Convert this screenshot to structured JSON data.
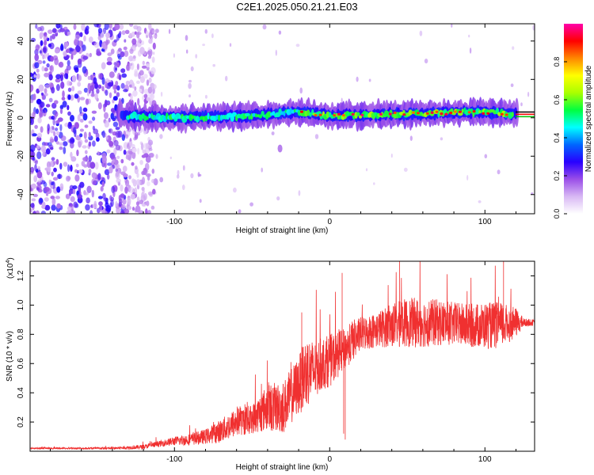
{
  "title": "C2E1.2025.050.21.21.E03",
  "chart_data": [
    {
      "type": "heatmap",
      "xlabel": "Height of straight line (km)",
      "ylabel": "Frequency (Hz)",
      "xlim": [
        -193,
        132
      ],
      "ylim": [
        -50,
        49
      ],
      "x_ticks": [
        -100,
        0,
        100
      ],
      "y_ticks": [
        -40,
        -20,
        0,
        20,
        40
      ],
      "colorbar": {
        "label": "Normalized spectral amplitude",
        "range": [
          0,
          1
        ],
        "ticks": [
          0.0,
          0.2,
          0.4,
          0.6,
          0.8
        ],
        "colormap": [
          "#ffffff",
          "#d8b8f4",
          "#9a4ee8",
          "#2800ff",
          "#0066ff",
          "#00ffff",
          "#00ff40",
          "#aaff00",
          "#ffff00",
          "#ff8800",
          "#ff0000",
          "#ff00aa"
        ]
      },
      "signal_ridge": {
        "description_values": "narrow band near 0 Hz",
        "freq_center_hz": [
          [
            -135,
            1
          ],
          [
            -100,
            0
          ],
          [
            -50,
            1
          ],
          [
            -20,
            3
          ],
          [
            0,
            1
          ],
          [
            50,
            2
          ],
          [
            100,
            3
          ],
          [
            120,
            2
          ]
        ],
        "noise_region_x": [
          -193,
          -120
        ],
        "isolated_feature": {
          "x": -32,
          "y": -16
        }
      },
      "legend_markers": [
        "#000000",
        "#ff0000",
        "#00c000"
      ]
    },
    {
      "type": "line",
      "xlabel": "Height of straight line (km)",
      "ylabel": "SNR (10 * v/v)",
      "y_multiplier": "(x10",
      "y_exponent": "4",
      "xlim": [
        -193,
        132
      ],
      "ylim": [
        0,
        1.3
      ],
      "x_ticks": [
        -100,
        0,
        100
      ],
      "y_ticks": [
        0.2,
        0.4,
        0.6,
        0.8,
        1.0,
        1.2
      ],
      "color": "#f03030",
      "series": [
        {
          "x": [
            -193,
            -170,
            -140,
            -120,
            -110,
            -100,
            -90,
            -80,
            -70,
            -60,
            -50,
            -40,
            -30,
            -20,
            -15,
            -10,
            -5,
            0,
            5,
            10,
            15,
            20,
            30,
            40,
            50,
            60,
            70,
            80,
            90,
            100,
            110,
            120,
            125,
            132
          ],
          "values": [
            0.02,
            0.02,
            0.02,
            0.03,
            0.05,
            0.07,
            0.08,
            0.1,
            0.14,
            0.2,
            0.22,
            0.3,
            0.3,
            0.45,
            0.55,
            0.55,
            0.6,
            0.62,
            0.66,
            0.7,
            0.76,
            0.8,
            0.83,
            0.86,
            0.88,
            0.88,
            0.88,
            0.87,
            0.86,
            0.86,
            0.86,
            0.88,
            0.88,
            0.88
          ],
          "spread": [
            0.005,
            0.005,
            0.008,
            0.015,
            0.02,
            0.03,
            0.04,
            0.05,
            0.08,
            0.1,
            0.1,
            0.16,
            0.18,
            0.2,
            0.25,
            0.2,
            0.18,
            0.18,
            0.16,
            0.14,
            0.14,
            0.12,
            0.12,
            0.15,
            0.17,
            0.17,
            0.16,
            0.15,
            0.15,
            0.16,
            0.16,
            0.1,
            0.03,
            0.02
          ]
        }
      ]
    }
  ]
}
